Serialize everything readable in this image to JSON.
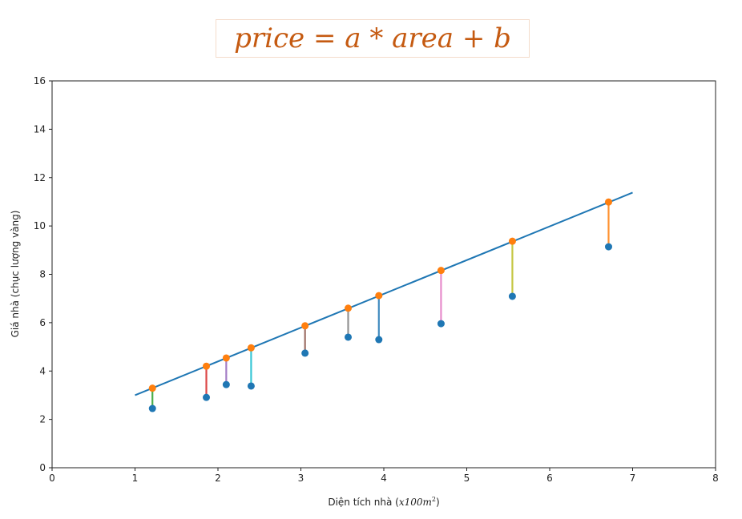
{
  "chart_data": {
    "type": "scatter",
    "title": "price = a * area + b",
    "xlabel": "Diện tích nhà (x100m²)",
    "xlabel_parts": {
      "text": "Diện tích nhà (",
      "math": "x100m",
      "sup": "2",
      "close": ")"
    },
    "ylabel": "Giá nhà (chục lượng vàng)",
    "xlim": [
      0,
      8
    ],
    "ylim": [
      0,
      16
    ],
    "xticks": [
      0,
      1,
      2,
      3,
      4,
      5,
      6,
      7,
      8
    ],
    "yticks": [
      0,
      2,
      4,
      6,
      8,
      10,
      12,
      14,
      16
    ],
    "grid": false,
    "fit_line": {
      "x": [
        1,
        7
      ],
      "y": [
        3.0,
        11.38
      ],
      "color": "#1f77b4"
    },
    "actual": {
      "color": "#1f77b4",
      "x": [
        1.21,
        1.86,
        2.1,
        2.4,
        3.05,
        3.57,
        3.94,
        4.69,
        5.55,
        6.71
      ],
      "y": [
        2.45,
        2.91,
        3.44,
        3.38,
        4.74,
        5.4,
        5.3,
        5.96,
        7.09,
        9.14
      ]
    },
    "predicted": {
      "color": "#ff7f0e",
      "y": [
        3.29,
        4.2,
        4.54,
        4.96,
        5.87,
        6.6,
        7.12,
        8.16,
        9.37,
        10.99
      ]
    },
    "residual_colors": [
      "#2ca02c",
      "#d62728",
      "#9467bd",
      "#17becf",
      "#8c564b",
      "#7f7f7f",
      "#1f77b4",
      "#e377c2",
      "#bcbd22",
      "#ff7f0e"
    ]
  }
}
